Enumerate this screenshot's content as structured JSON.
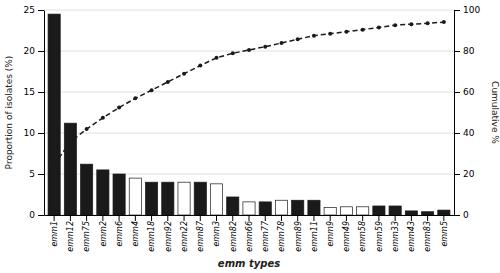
{
  "chart_data": {
    "type": "bar",
    "categories": [
      "emm1",
      "emm12",
      "emm75",
      "emm2",
      "emm6",
      "emm4",
      "emm18",
      "emm92",
      "emm22",
      "emm87",
      "emm3",
      "emm82",
      "emm66",
      "emm77",
      "emm78",
      "emm89",
      "emm11",
      "emm9",
      "emm49",
      "emm58",
      "emm59",
      "emm33",
      "emm43",
      "emm83",
      "emm5"
    ],
    "series": [
      {
        "type": "bar",
        "colors": [
          "#1a1a1a",
          "#1a1a1a",
          "#1a1a1a",
          "#1a1a1a",
          "#1a1a1a",
          "#ffffff",
          "#1a1a1a",
          "#1a1a1a",
          "#ffffff",
          "#1a1a1a",
          "#ffffff",
          "#1a1a1a",
          "#ffffff",
          "#1a1a1a",
          "#ffffff",
          "#1a1a1a",
          "#1a1a1a",
          "#ffffff",
          "#ffffff",
          "#ffffff",
          "#1a1a1a",
          "#1a1a1a",
          "#1a1a1a",
          "#1a1a1a",
          "#1a1a1a"
        ],
        "values": [
          24.5,
          11.2,
          6.2,
          5.5,
          5.0,
          4.5,
          4.0,
          4.0,
          4.0,
          4.0,
          3.8,
          2.2,
          1.6,
          1.6,
          1.8,
          1.8,
          1.8,
          0.9,
          1.0,
          1.0,
          1.1,
          1.1,
          0.5,
          0.4,
          0.6
        ]
      },
      {
        "type": "line",
        "axis": "y2",
        "color": "#1a1a1a",
        "line_style": "dashed",
        "marker": "circle",
        "values": [
          24.5,
          35.7,
          41.9,
          47.4,
          52.4,
          56.9,
          60.9,
          64.9,
          68.9,
          72.9,
          76.7,
          78.9,
          80.5,
          82.1,
          83.9,
          85.7,
          87.5,
          88.4,
          89.4,
          90.4,
          91.5,
          92.6,
          93.1,
          93.5,
          94.1
        ]
      }
    ],
    "xlabel": "emm types",
    "ylabel": "Proportion of isolates (%)",
    "y2label": "Cumulative %",
    "ylim": [
      0,
      25
    ],
    "yticks": [
      0,
      5,
      10,
      15,
      20,
      25
    ],
    "y2lim": [
      0,
      100
    ],
    "y2ticks": [
      0,
      20,
      40,
      60,
      80,
      100
    ],
    "grid": true
  }
}
